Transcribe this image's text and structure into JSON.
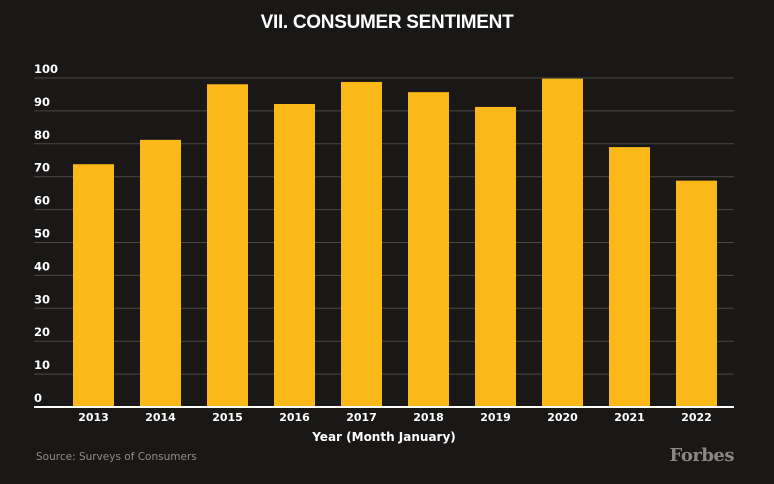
{
  "chart_data": {
    "type": "bar",
    "title": "VII. CONSUMER SENTIMENT",
    "xlabel": "Year (Month January)",
    "ylabel": "",
    "categories": [
      "2013",
      "2014",
      "2015",
      "2016",
      "2017",
      "2018",
      "2019",
      "2020",
      "2021",
      "2022"
    ],
    "values": [
      73.8,
      81.2,
      98.1,
      92.1,
      98.8,
      95.7,
      91.2,
      99.8,
      79.0,
      68.8
    ],
    "ylim": [
      0,
      100
    ],
    "yticks": [
      0,
      10,
      20,
      30,
      40,
      50,
      60,
      70,
      80,
      90,
      100
    ],
    "grid": true,
    "legend": "none",
    "bar_color": "#fbb819",
    "background_color": "#1a1817"
  },
  "source": "Source: Surveys of Consumers",
  "brand": "Forbes"
}
